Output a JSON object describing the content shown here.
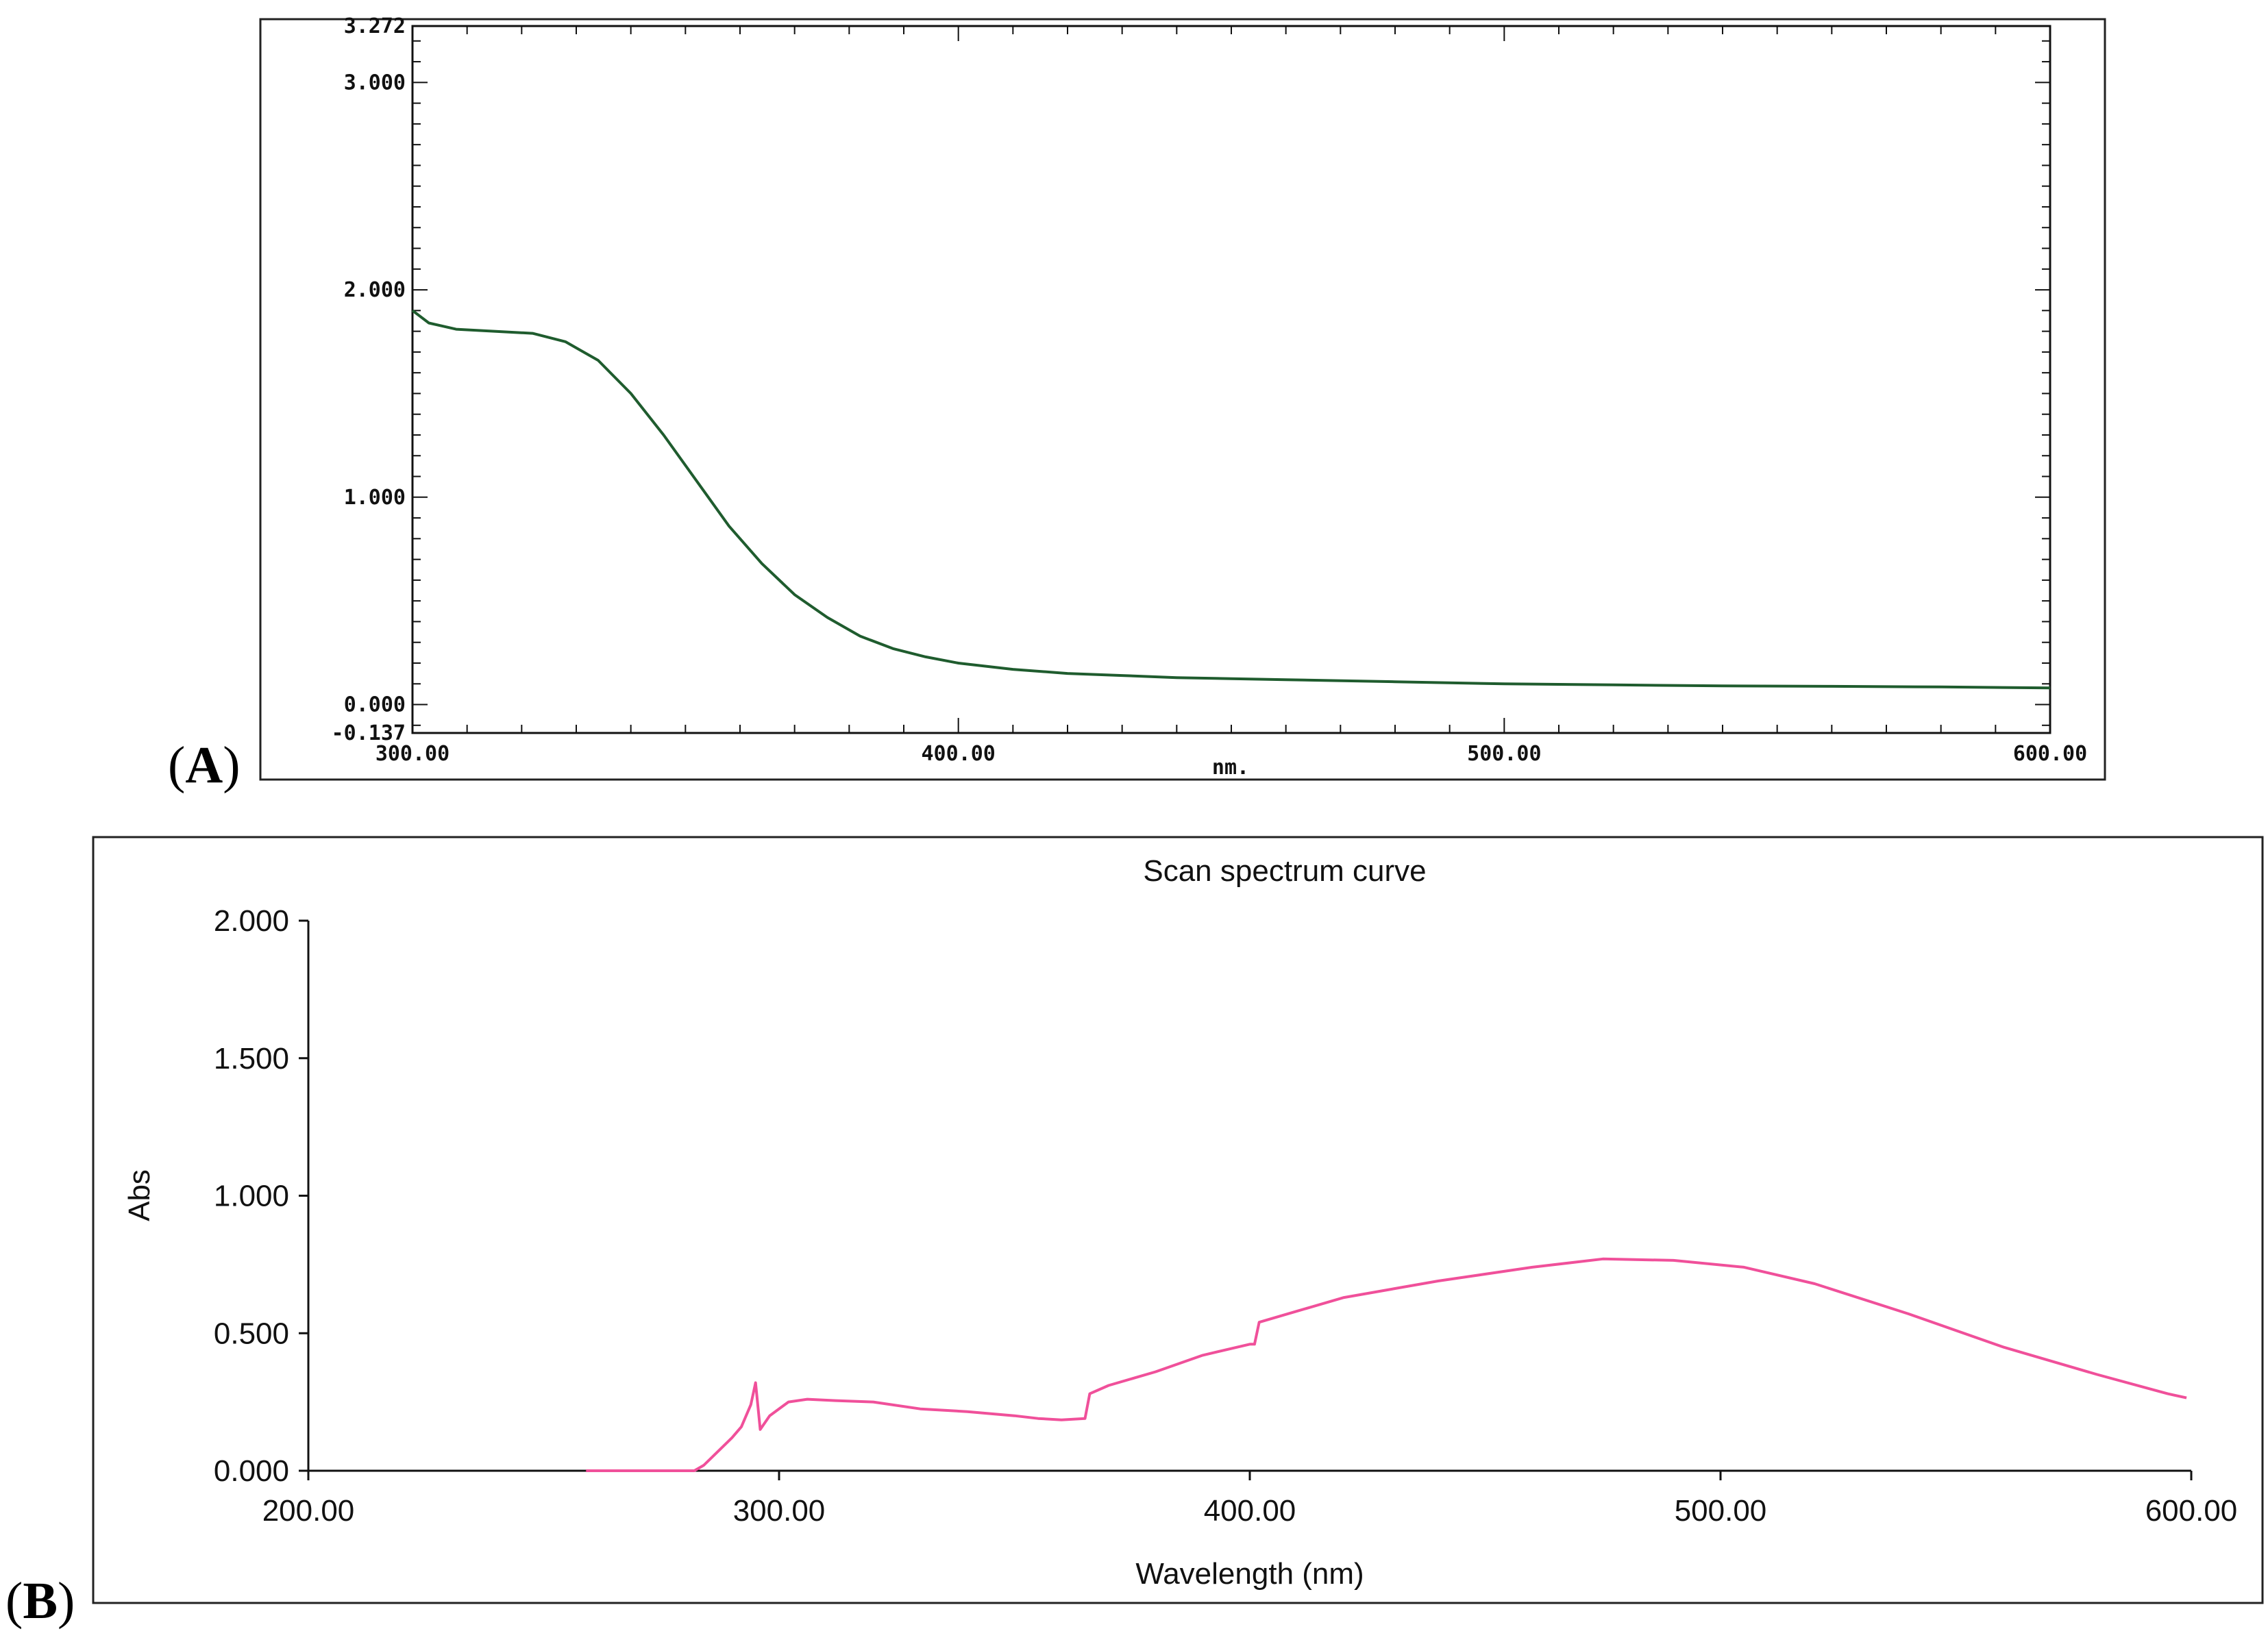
{
  "panels": {
    "a": {
      "open": "(",
      "letter": "A",
      "close": ")"
    },
    "b": {
      "open": "(",
      "letter": "B",
      "close": ")"
    }
  },
  "chart_data": [
    {
      "id": "A",
      "type": "line",
      "title": "",
      "xlabel": "nm.",
      "ylabel": "",
      "xlim": [
        300,
        600
      ],
      "ylim": [
        -0.137,
        3.272
      ],
      "x_ticks": [
        "300.00",
        "400.00",
        "500.00",
        "600.00"
      ],
      "y_ticks": [
        "3.272",
        "3.000",
        "2.000",
        "1.000",
        "0.000",
        "-0.137"
      ],
      "grid": false,
      "color": "#1f5c2e",
      "series": [
        {
          "x": [
            300,
            303,
            308,
            315,
            322,
            328,
            334,
            340,
            346,
            352,
            358,
            364,
            370,
            376,
            382,
            388,
            394,
            400,
            410,
            420,
            430,
            440,
            450,
            460,
            480,
            500,
            520,
            540,
            560,
            580,
            600
          ],
          "values": [
            1.9,
            1.84,
            1.81,
            1.8,
            1.79,
            1.75,
            1.66,
            1.5,
            1.3,
            1.08,
            0.86,
            0.68,
            0.53,
            0.42,
            0.33,
            0.27,
            0.23,
            0.2,
            0.17,
            0.15,
            0.14,
            0.13,
            0.125,
            0.12,
            0.11,
            0.1,
            0.095,
            0.09,
            0.088,
            0.085,
            0.08
          ]
        }
      ]
    },
    {
      "id": "B",
      "type": "line",
      "title": "Scan spectrum curve",
      "xlabel": "Wavelength (nm)",
      "ylabel": "Abs",
      "xlim": [
        200,
        600
      ],
      "ylim": [
        0,
        2
      ],
      "x_ticks": [
        "200.00",
        "300.00",
        "400.00",
        "500.00",
        "600.00"
      ],
      "y_ticks": [
        "0.000",
        "0.500",
        "1.000",
        "1.500",
        "2.000"
      ],
      "grid": false,
      "color": "#f0509a",
      "series": [
        {
          "x": [
            259,
            264,
            270,
            276,
            282,
            284,
            287,
            290,
            292,
            294,
            295,
            296,
            298,
            302,
            306,
            312,
            320,
            330,
            340,
            350,
            355,
            360,
            365,
            366,
            370,
            380,
            390,
            400,
            401,
            402,
            410,
            420,
            440,
            460,
            475,
            490,
            505,
            520,
            540,
            560,
            580,
            595,
            599
          ],
          "values": [
            0,
            0,
            0,
            0,
            0,
            0.02,
            0.07,
            0.12,
            0.16,
            0.24,
            0.32,
            0.15,
            0.2,
            0.25,
            0.26,
            0.255,
            0.25,
            0.225,
            0.215,
            0.2,
            0.19,
            0.185,
            0.19,
            0.28,
            0.31,
            0.36,
            0.42,
            0.46,
            0.46,
            0.54,
            0.58,
            0.63,
            0.69,
            0.74,
            0.77,
            0.765,
            0.74,
            0.68,
            0.57,
            0.45,
            0.35,
            0.28,
            0.265
          ]
        }
      ]
    }
  ]
}
